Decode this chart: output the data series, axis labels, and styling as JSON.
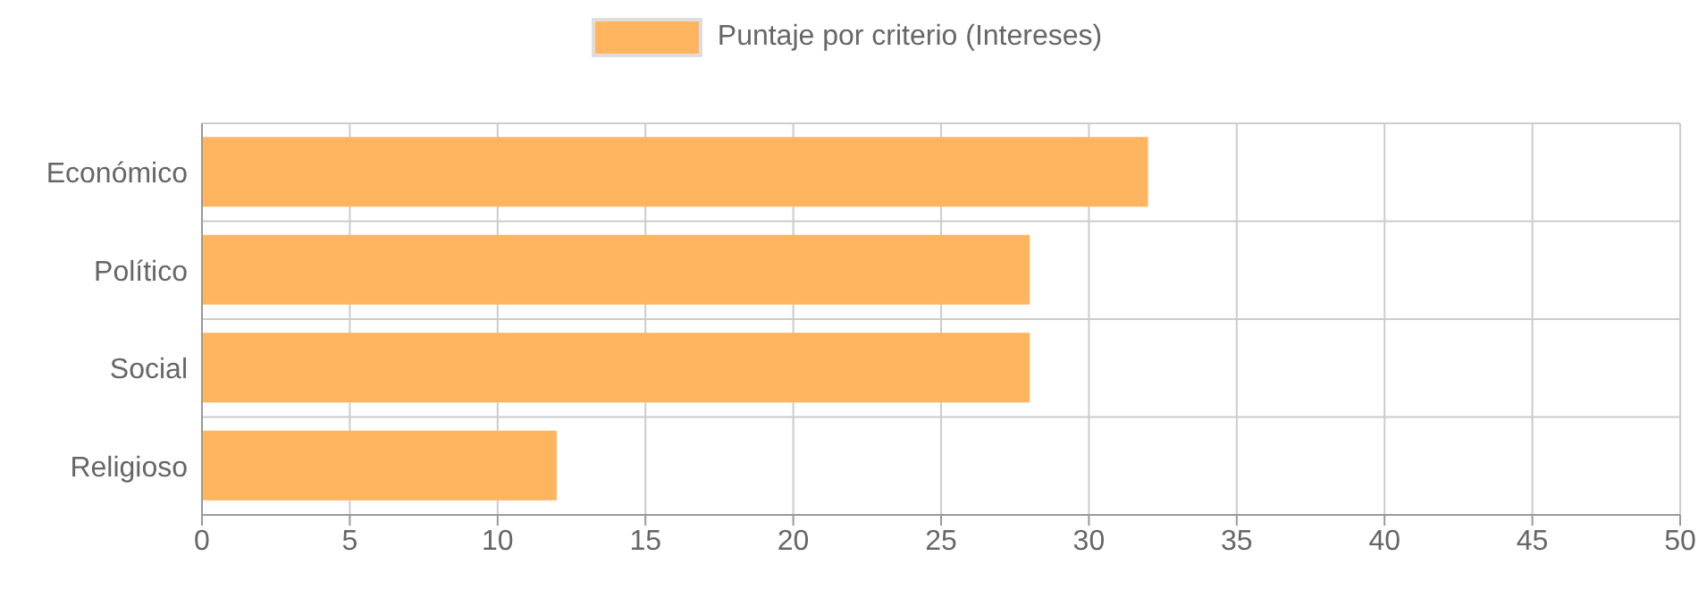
{
  "chart_data": {
    "type": "bar",
    "orientation": "horizontal",
    "categories": [
      "Económico",
      "Político",
      "Social",
      "Religioso"
    ],
    "series": [
      {
        "name": "Puntaje por criterio (Intereses)",
        "color": "#ffb55f",
        "values": [
          32,
          28,
          28,
          12
        ]
      }
    ],
    "xlim": [
      0,
      50
    ],
    "xticks": [
      0,
      5,
      10,
      15,
      20,
      25,
      30,
      35,
      40,
      45,
      50
    ],
    "grid": true,
    "legend": "top"
  }
}
